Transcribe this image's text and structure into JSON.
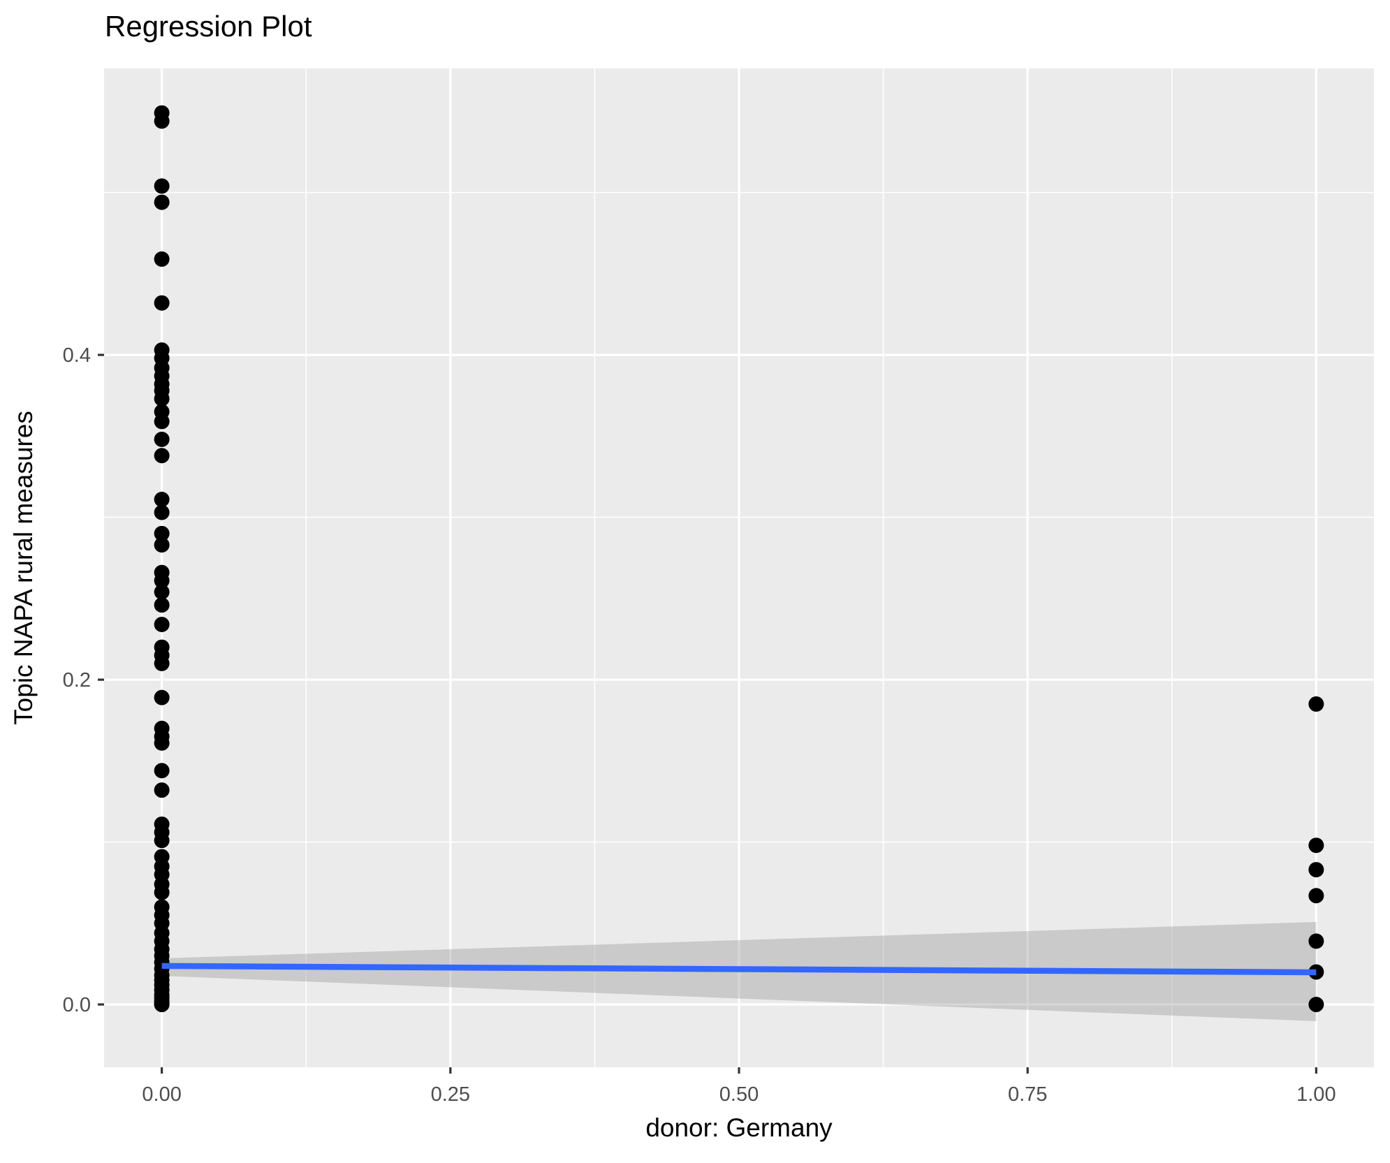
{
  "title": "Regression Plot",
  "chart_data": {
    "type": "scatter",
    "title": "Regression Plot",
    "xlabel": "donor: Germany",
    "ylabel": "Topic NAPA rural measures",
    "xlim": [
      -0.05,
      1.05
    ],
    "ylim": [
      -0.0387,
      0.5764
    ],
    "grid": true,
    "legend_position": "none",
    "x_ticks": [
      0.0,
      0.25,
      0.5,
      0.75,
      1.0
    ],
    "x_tick_labels": [
      "0.00",
      "0.25",
      "0.50",
      "0.75",
      "1.00"
    ],
    "y_ticks": [
      0.0,
      0.2,
      0.4
    ],
    "y_tick_labels": [
      "0.0",
      "0.2",
      "0.4"
    ],
    "x_minor_ticks": [
      0.125,
      0.375,
      0.625,
      0.875
    ],
    "y_minor_ticks": [
      0.1,
      0.3,
      0.5
    ],
    "series": [
      {
        "name": "donor = 0",
        "x": 0,
        "y": [
          0.549,
          0.544,
          0.504,
          0.494,
          0.459,
          0.432,
          0.403,
          0.398,
          0.392,
          0.387,
          0.382,
          0.378,
          0.373,
          0.365,
          0.359,
          0.348,
          0.338,
          0.311,
          0.303,
          0.29,
          0.283,
          0.266,
          0.261,
          0.254,
          0.246,
          0.234,
          0.22,
          0.215,
          0.21,
          0.189,
          0.17,
          0.165,
          0.161,
          0.144,
          0.132,
          0.111,
          0.106,
          0.101,
          0.091,
          0.085,
          0.08,
          0.074,
          0.069,
          0.06,
          0.055,
          0.05,
          0.044,
          0.039,
          0.034,
          0.03,
          0.026,
          0.022,
          0.018,
          0.015,
          0.012,
          0.009,
          0.006,
          0.004,
          0.002,
          0.001,
          0.0,
          0.0
        ]
      },
      {
        "name": "donor = 1",
        "x": 1,
        "y": [
          0.185,
          0.098,
          0.083,
          0.067,
          0.039,
          0.02,
          0.0
        ]
      }
    ],
    "regression_line": {
      "x": [
        0,
        1
      ],
      "y": [
        0.0237,
        0.0198
      ]
    },
    "confidence_band": {
      "x": [
        0,
        1
      ],
      "y_upper": [
        0.0284,
        0.0508
      ],
      "y_lower": [
        0.0176,
        -0.0103
      ]
    },
    "colors": {
      "panel_background": "#EBEBEB",
      "gridline": "#FFFFFF",
      "point": "#000000",
      "line": "#3366FF",
      "band_fill": "#999999",
      "band_opacity": 0.4,
      "tick_label": "#4D4D4D",
      "tick_mark": "#333333",
      "text": "#000000"
    }
  }
}
